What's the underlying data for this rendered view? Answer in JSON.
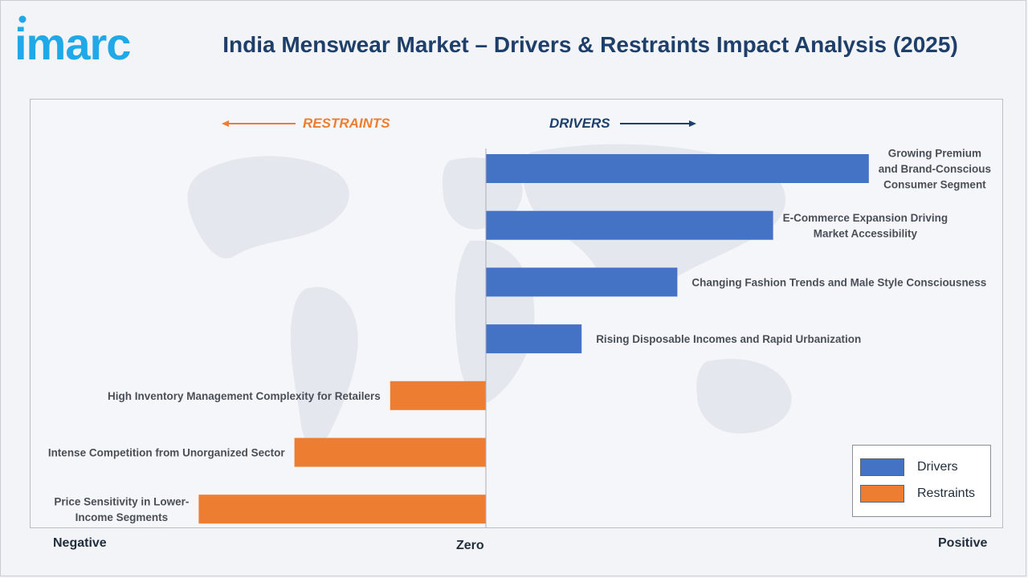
{
  "header": {
    "logo_text": "imarc",
    "title": "India Menswear Market – Drivers & Restraints Impact Analysis (2025)"
  },
  "colors": {
    "drivers": "#4472c4",
    "restraints": "#ed7d31",
    "title": "#1f3f6b",
    "logo": "#1fa9e6"
  },
  "direction_labels": {
    "restraints": "RESTRAINTS",
    "drivers": "DRIVERS"
  },
  "axis": {
    "negative": "Negative",
    "zero": "Zero",
    "positive": "Positive"
  },
  "legend": {
    "drivers": "Drivers",
    "restraints": "Restraints"
  },
  "chart_data": {
    "type": "bar",
    "orientation": "horizontal",
    "title": "India Menswear Market – Drivers & Restraints Impact Analysis (2025)",
    "xlim": [
      -1,
      1
    ],
    "grid": false,
    "legend_position": "bottom-right",
    "categories": [
      "Growing Premium\nand Brand-Conscious\nConsumer Segment",
      "E-Commerce Expansion Driving\nMarket Accessibility",
      "Changing Fashion Trends and Male Style Consciousness",
      "Rising Disposable Incomes and Rapid Urbanization",
      "High Inventory Management Complexity for Retailers",
      "Intense Competition from Unorganized Sector",
      "Price Sensitivity in Lower-\nIncome Segments"
    ],
    "series": [
      {
        "name": "Drivers",
        "values": [
          0.8,
          0.6,
          0.4,
          0.2,
          null,
          null,
          null
        ]
      },
      {
        "name": "Restraints",
        "values": [
          null,
          null,
          null,
          null,
          -0.2,
          -0.4,
          -0.6
        ]
      }
    ]
  }
}
